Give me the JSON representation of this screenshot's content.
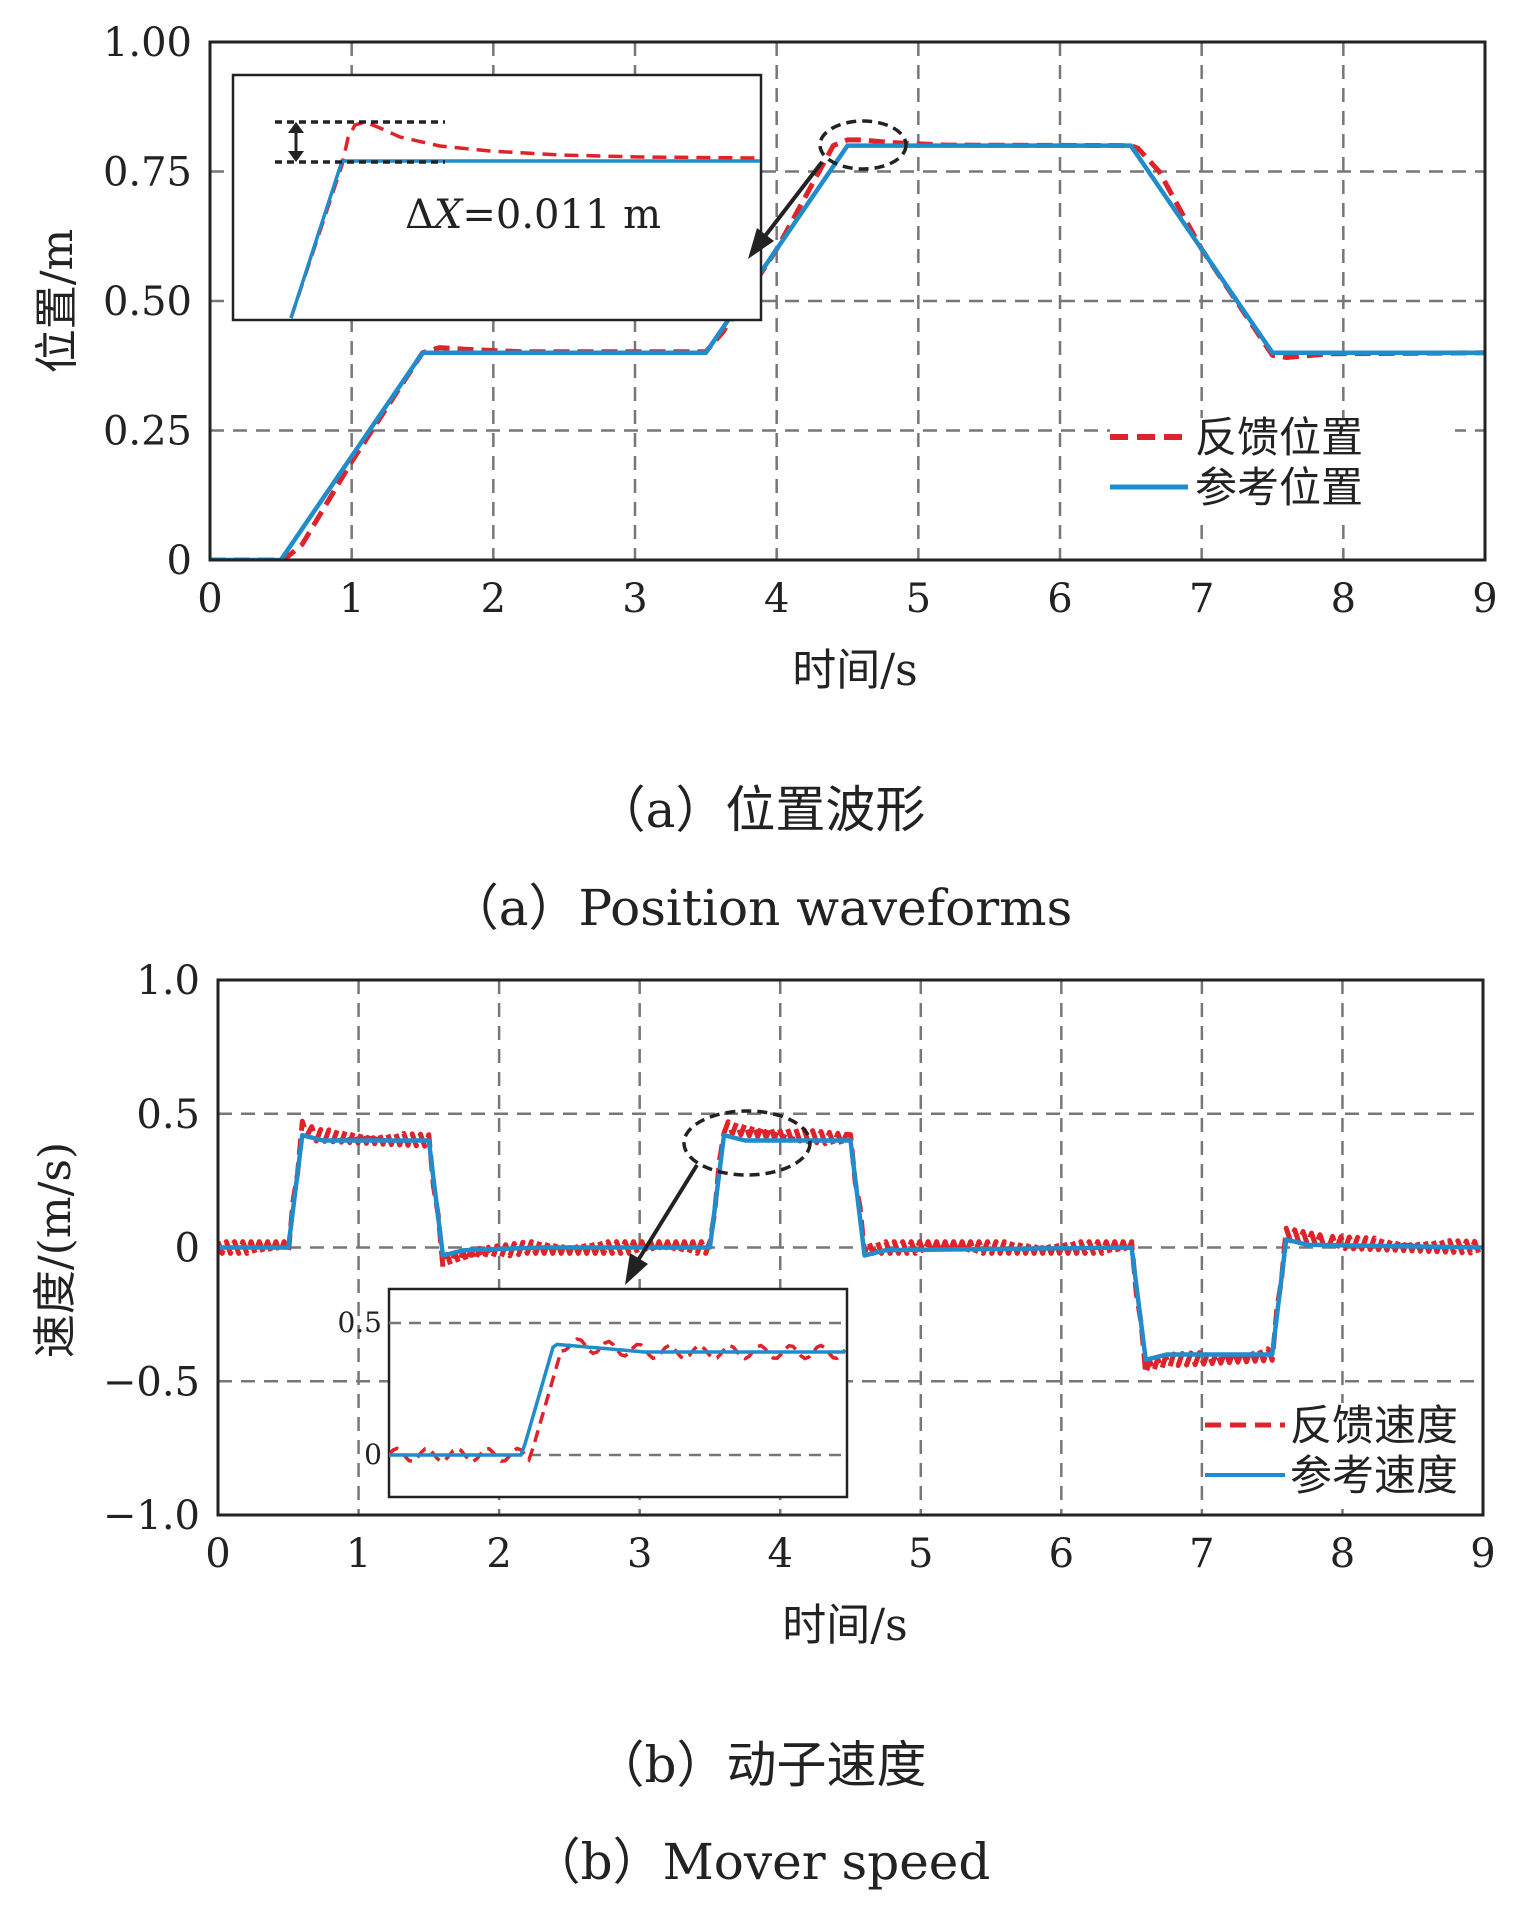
{
  "chart_data": [
    {
      "type": "line",
      "title": "",
      "xlabel": "时间/s",
      "ylabel": "位置/m",
      "xlim": [
        0,
        9
      ],
      "ylim": [
        0,
        1
      ],
      "x_ticks": [
        "0",
        "1",
        "2",
        "3",
        "4",
        "5",
        "6",
        "7",
        "8",
        "9"
      ],
      "y_ticks": [
        {
          "value": 0,
          "label": "0"
        },
        {
          "value": 0.25,
          "label": "0.25"
        },
        {
          "value": 0.5,
          "label": "0.50"
        },
        {
          "value": 0.75,
          "label": "0.75"
        },
        {
          "value": 1,
          "label": "1.00"
        }
      ],
      "grid": true,
      "legend_position": "lower-right",
      "series": [
        {
          "name": "反馈位置",
          "style": "dashed",
          "color": "#e0232a",
          "x": [
            0,
            0.52,
            0.65,
            1.0,
            1.5,
            1.62,
            1.8,
            2.2,
            3.5,
            3.62,
            4.0,
            4.4,
            4.5,
            4.6,
            4.8,
            5.2,
            6.5,
            6.55,
            6.7,
            7.0,
            7.5,
            7.6,
            7.9,
            9
          ],
          "values": [
            0,
            0,
            0.03,
            0.19,
            0.4,
            0.41,
            0.407,
            0.402,
            0.402,
            0.44,
            0.6,
            0.8,
            0.811,
            0.811,
            0.806,
            0.801,
            0.8,
            0.795,
            0.75,
            0.6,
            0.395,
            0.391,
            0.398,
            0.4
          ]
        },
        {
          "name": "参考位置",
          "style": "solid",
          "color": "#1f8ccc",
          "x": [
            0,
            0.5,
            1.5,
            3.5,
            4.5,
            6.5,
            7.5,
            9
          ],
          "values": [
            0,
            0,
            0.4,
            0.4,
            0.8,
            0.8,
            0.4,
            0.4
          ]
        }
      ],
      "annotation": {
        "text_prefix": "Δ",
        "text_var": "X",
        "text_suffix": "=0.011 m",
        "delta_x": 0.011,
        "unit": "m"
      },
      "caption_cn": "（a）位置波形",
      "caption_en": "（a）Position waveforms"
    },
    {
      "type": "line",
      "title": "",
      "xlabel": "时间/s",
      "ylabel": "速度/(m/s)",
      "xlim": [
        0,
        9
      ],
      "ylim": [
        -1,
        1
      ],
      "x_ticks": [
        "0",
        "1",
        "2",
        "3",
        "4",
        "5",
        "6",
        "7",
        "8",
        "9"
      ],
      "y_ticks": [
        {
          "value": -1,
          "label": "−1.0"
        },
        {
          "value": -0.5,
          "label": "−0.5"
        },
        {
          "value": 0,
          "label": "0"
        },
        {
          "value": 0.5,
          "label": "0.5"
        },
        {
          "value": 1,
          "label": "1.0"
        }
      ],
      "grid": true,
      "legend_position": "lower-right",
      "series": [
        {
          "name": "反馈速度",
          "style": "dashed",
          "color": "#e0232a",
          "x": [
            0,
            0.5,
            0.6,
            0.7,
            1.5,
            1.6,
            1.8,
            2.2,
            3.5,
            3.6,
            4.5,
            4.6,
            6.5,
            6.6,
            6.8,
            7.5,
            7.6,
            7.9,
            9
          ],
          "values": [
            0,
            0,
            0.45,
            0.42,
            0.4,
            -0.05,
            -0.03,
            0,
            0,
            0.45,
            0.4,
            0,
            0,
            -0.45,
            -0.42,
            -0.4,
            0.05,
            0.02,
            0
          ]
        },
        {
          "name": "参考速度",
          "style": "solid",
          "color": "#1f8ccc",
          "x": [
            0,
            0.5,
            0.6,
            0.75,
            1.5,
            1.6,
            1.75,
            2.3,
            3.5,
            3.6,
            3.75,
            4.5,
            4.6,
            4.75,
            6.5,
            6.6,
            6.75,
            7.5,
            7.6,
            7.75,
            9
          ],
          "values": [
            0,
            0,
            0.42,
            0.4,
            0.4,
            -0.03,
            -0.01,
            0,
            0,
            0.42,
            0.4,
            0.4,
            -0.03,
            -0.01,
            0,
            -0.42,
            -0.4,
            -0.4,
            0.03,
            0.01,
            0
          ]
        }
      ],
      "inset": {
        "y_ticks": [
          {
            "value": 0,
            "label": "0"
          },
          {
            "value": 0.5,
            "label": "0.5"
          }
        ]
      },
      "caption_cn": "（b）动子速度",
      "caption_en": "（b）Mover speed"
    }
  ]
}
